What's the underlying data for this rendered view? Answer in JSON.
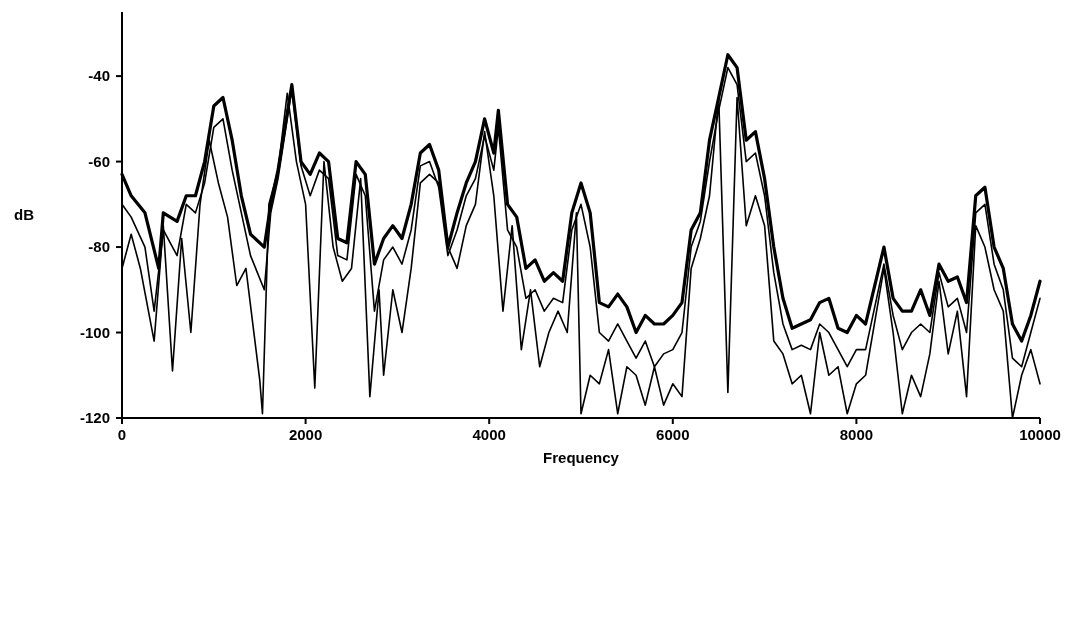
{
  "chart_data": {
    "type": "line",
    "xlabel": "Frequency",
    "ylabel": "dB",
    "xlim": [
      0,
      10000
    ],
    "ylim": [
      -120,
      -25
    ],
    "xticks": [
      0,
      2000,
      4000,
      6000,
      8000,
      10000
    ],
    "yticks": [
      -120,
      -100,
      -80,
      -60,
      -40
    ],
    "series": [
      {
        "color": "#000000",
        "x": [
          0,
          100,
          250,
          400,
          450,
          600,
          700,
          800,
          900,
          1000,
          1100,
          1200,
          1300,
          1400,
          1550,
          1620,
          1700,
          1850,
          1950,
          2050,
          2150,
          2250,
          2350,
          2450,
          2550,
          2650,
          2750,
          2850,
          2950,
          3050,
          3150,
          3250,
          3350,
          3450,
          3550,
          3650,
          3750,
          3850,
          3950,
          4050,
          4100,
          4200,
          4300,
          4400,
          4500,
          4600,
          4700,
          4800,
          4900,
          5000,
          5100,
          5200,
          5300,
          5400,
          5500,
          5600,
          5700,
          5800,
          5900,
          6000,
          6100,
          6200,
          6300,
          6400,
          6500,
          6600,
          6700,
          6800,
          6900,
          7000,
          7100,
          7200,
          7300,
          7400,
          7500,
          7600,
          7700,
          7800,
          7900,
          8000,
          8100,
          8300,
          8400,
          8500,
          8600,
          8700,
          8800,
          8900,
          9000,
          9100,
          9200,
          9300,
          9400,
          9500,
          9600,
          9700,
          9800,
          9900,
          10000
        ],
        "values": [
          -63,
          -68,
          -72,
          -85,
          -72,
          -74,
          -68,
          -68,
          -60,
          -47,
          -45,
          -55,
          -68,
          -77,
          -80,
          -70,
          -62,
          -42,
          -60,
          -63,
          -58,
          -60,
          -78,
          -79,
          -60,
          -63,
          -84,
          -78,
          -75,
          -78,
          -70,
          -58,
          -56,
          -62,
          -80,
          -72,
          -65,
          -60,
          -50,
          -58,
          -48,
          -70,
          -73,
          -85,
          -83,
          -88,
          -86,
          -88,
          -72,
          -65,
          -72,
          -93,
          -94,
          -91,
          -94,
          -100,
          -96,
          -98,
          -98,
          -96,
          -93,
          -76,
          -72,
          -55,
          -45,
          -35,
          -38,
          -55,
          -53,
          -64,
          -80,
          -92,
          -99,
          -98,
          -97,
          -93,
          -92,
          -99,
          -100,
          -96,
          -98,
          -80,
          -92,
          -95,
          -95,
          -90,
          -96,
          -84,
          -88,
          -87,
          -93,
          -68,
          -66,
          -80,
          -85,
          -98,
          -102,
          -96,
          -88
        ]
      },
      {
        "color": "#000000",
        "x": [
          0,
          100,
          250,
          350,
          450,
          600,
          700,
          800,
          900,
          1000,
          1100,
          1200,
          1300,
          1400,
          1550,
          1620,
          1700,
          1850,
          1950,
          2050,
          2150,
          2250,
          2350,
          2450,
          2550,
          2650,
          2750,
          2850,
          2950,
          3050,
          3150,
          3250,
          3350,
          3450,
          3550,
          3650,
          3750,
          3850,
          3950,
          4050,
          4100,
          4200,
          4300,
          4400,
          4500,
          4600,
          4700,
          4800,
          4900,
          5000,
          5100,
          5200,
          5300,
          5400,
          5500,
          5600,
          5700,
          5800,
          5900,
          6000,
          6100,
          6200,
          6300,
          6400,
          6500,
          6600,
          6700,
          6800,
          6900,
          7000,
          7100,
          7200,
          7300,
          7400,
          7500,
          7600,
          7700,
          7800,
          7900,
          8000,
          8100,
          8300,
          8400,
          8500,
          8600,
          8700,
          8800,
          8900,
          9000,
          9100,
          9200,
          9300,
          9400,
          9500,
          9600,
          9700,
          9800,
          9900,
          10000
        ],
        "values": [
          -70,
          -73,
          -80,
          -95,
          -76,
          -82,
          -70,
          -72,
          -65,
          -52,
          -50,
          -62,
          -72,
          -82,
          -90,
          -72,
          -64,
          -43,
          -61,
          -68,
          -62,
          -64,
          -82,
          -83,
          -63,
          -68,
          -95,
          -83,
          -80,
          -84,
          -76,
          -61,
          -60,
          -66,
          -82,
          -76,
          -68,
          -64,
          -54,
          -62,
          -52,
          -76,
          -80,
          -92,
          -90,
          -95,
          -92,
          -93,
          -76,
          -70,
          -80,
          -100,
          -102,
          -98,
          -102,
          -106,
          -102,
          -108,
          -105,
          -104,
          -100,
          -80,
          -74,
          -60,
          -48,
          -38,
          -42,
          -60,
          -58,
          -68,
          -86,
          -98,
          -104,
          -103,
          -104,
          -98,
          -100,
          -104,
          -108,
          -104,
          -104,
          -84,
          -96,
          -104,
          -100,
          -98,
          -100,
          -86,
          -94,
          -92,
          -100,
          -72,
          -70,
          -84,
          -90,
          -106,
          -108,
          -100,
          -92
        ]
      },
      {
        "color": "#000000",
        "x": [
          0,
          100,
          200,
          350,
          450,
          550,
          650,
          750,
          850,
          950,
          1050,
          1150,
          1250,
          1350,
          1500,
          1530,
          1600,
          1700,
          1800,
          1900,
          2000,
          2100,
          2200,
          2300,
          2400,
          2500,
          2600,
          2700,
          2800,
          2850,
          2950,
          3050,
          3150,
          3250,
          3350,
          3450,
          3550,
          3650,
          3750,
          3850,
          3950,
          4050,
          4150,
          4250,
          4350,
          4450,
          4550,
          4650,
          4750,
          4850,
          4950,
          5000,
          5100,
          5200,
          5300,
          5400,
          5500,
          5600,
          5700,
          5800,
          5900,
          6000,
          6100,
          6200,
          6300,
          6400,
          6500,
          6600,
          6700,
          6800,
          6900,
          7000,
          7100,
          7200,
          7300,
          7400,
          7500,
          7600,
          7700,
          7800,
          7900,
          8000,
          8100,
          8300,
          8400,
          8500,
          8600,
          8700,
          8800,
          8900,
          9000,
          9100,
          9200,
          9300,
          9400,
          9500,
          9600,
          9700,
          9800,
          9900,
          10000
        ],
        "values": [
          -85,
          -77,
          -85,
          -102,
          -75,
          -109,
          -78,
          -100,
          -70,
          -55,
          -65,
          -73,
          -89,
          -85,
          -111,
          -119,
          -70,
          -62,
          -44,
          -60,
          -70,
          -113,
          -60,
          -80,
          -88,
          -85,
          -64,
          -115,
          -90,
          -110,
          -90,
          -100,
          -85,
          -65,
          -63,
          -65,
          -80,
          -85,
          -75,
          -70,
          -53,
          -68,
          -95,
          -75,
          -104,
          -90,
          -108,
          -100,
          -95,
          -100,
          -72,
          -119,
          -110,
          -112,
          -104,
          -119,
          -108,
          -110,
          -117,
          -108,
          -117,
          -112,
          -115,
          -85,
          -78,
          -68,
          -45,
          -114,
          -45,
          -75,
          -68,
          -75,
          -102,
          -105,
          -112,
          -110,
          -119,
          -100,
          -110,
          -108,
          -119,
          -112,
          -110,
          -85,
          -100,
          -119,
          -110,
          -115,
          -105,
          -88,
          -105,
          -95,
          -115,
          -75,
          -80,
          -90,
          -95,
          -120,
          -110,
          -104,
          -112
        ]
      }
    ]
  }
}
